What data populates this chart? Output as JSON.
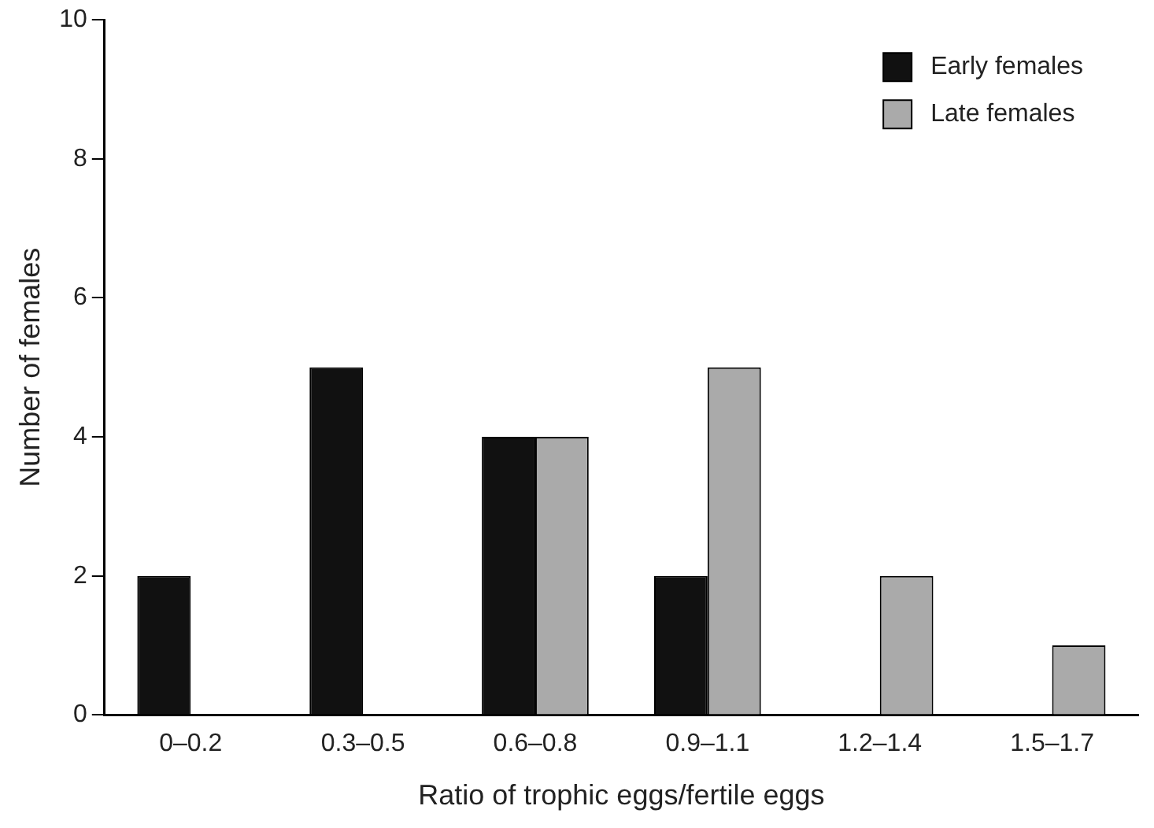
{
  "chart_data": {
    "type": "bar",
    "xlabel": "Ratio of trophic eggs/fertile eggs",
    "ylabel": "Number of females",
    "categories": [
      "0–0.2",
      "0.3–0.5",
      "0.6–0.8",
      "0.9–1.1",
      "1.2–1.4",
      "1.5–1.7"
    ],
    "series": [
      {
        "name": "Early females",
        "color": "#111111",
        "values": [
          2,
          5,
          4,
          2,
          0,
          0
        ]
      },
      {
        "name": "Late females",
        "color": "#aaaaaa",
        "values": [
          0,
          0,
          4,
          5,
          2,
          1
        ]
      }
    ],
    "ylim": [
      0,
      10
    ],
    "yticks": [
      0,
      2,
      4,
      6,
      8,
      10
    ],
    "grid": false,
    "legend": "top right"
  }
}
